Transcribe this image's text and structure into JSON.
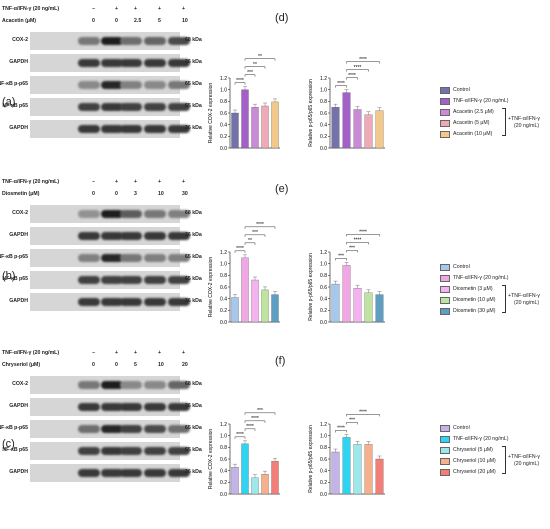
{
  "panel_labels": [
    "(a)",
    "(b)",
    "(c)",
    "(d)",
    "(e)",
    "(f)"
  ],
  "western_blots": [
    {
      "panel": "(a)",
      "treatment_label": "TNF-α/IFN-γ (20 ng/mL)",
      "treatment_signs": [
        "−",
        "+",
        "+",
        "+",
        "+"
      ],
      "compound_label": "Acacetin (μM)",
      "doses": [
        "0",
        "0",
        "2.5",
        "5",
        "10"
      ],
      "bands": [
        {
          "protein": "COX-2",
          "kda": "68 kDa"
        },
        {
          "protein": "GAPDH",
          "kda": "36 kDa"
        },
        {
          "protein": "NF-κB p-p65",
          "kda": "65 kDa"
        },
        {
          "protein": "NF-κB p65",
          "kda": "65 kDa"
        },
        {
          "protein": "GAPDH",
          "kda": "36 kDa"
        }
      ]
    },
    {
      "panel": "(b)",
      "treatment_label": "TNF-α/IFN-γ (20 ng/mL)",
      "treatment_signs": [
        "−",
        "+",
        "+",
        "+",
        "+"
      ],
      "compound_label": "Diosmetin (μM)",
      "doses": [
        "0",
        "0",
        "3",
        "10",
        "30"
      ],
      "bands": [
        {
          "protein": "COX-2",
          "kda": "68 kDa"
        },
        {
          "protein": "GAPDH",
          "kda": "36 kDa"
        },
        {
          "protein": "NF-κB p-p65",
          "kda": "65 kDa"
        },
        {
          "protein": "NF-κB p65",
          "kda": "65 kDa"
        },
        {
          "protein": "GAPDH",
          "kda": "36 kDa"
        }
      ]
    },
    {
      "panel": "(c)",
      "treatment_label": "TNF-α/IFN-γ (20 ng/mL)",
      "treatment_signs": [
        "−",
        "+",
        "+",
        "+",
        "+"
      ],
      "compound_label": "Chryseriol (μM)",
      "doses": [
        "0",
        "0",
        "5",
        "10",
        "20"
      ],
      "bands": [
        {
          "protein": "COX-2",
          "kda": "68 kDa"
        },
        {
          "protein": "GAPDH",
          "kda": "36 kDa"
        },
        {
          "protein": "NF-κB p-p65",
          "kda": "65 kDa"
        },
        {
          "protein": "NF-κB p65",
          "kda": "65 kDa"
        },
        {
          "protein": "GAPDH",
          "kda": "36 kDa"
        }
      ]
    }
  ],
  "bracket_note": [
    "+TNF-α/IFN-γ",
    "(20 ng/mL)"
  ],
  "chart_data": [
    {
      "type": "bar",
      "panel": "(d)",
      "ylabel": "Relative COX-2 expression",
      "ylim": [
        0,
        1.2
      ],
      "yticks": [
        "0.0",
        "0.2",
        "0.4",
        "0.6",
        "0.8",
        "1.0",
        "1.2"
      ],
      "values": [
        0.6,
        1.0,
        0.7,
        0.72,
        0.79
      ],
      "sig": [
        [
          "****",
          0,
          1
        ],
        [
          "***",
          1,
          2
        ],
        [
          "**",
          1,
          3
        ],
        [
          "**",
          1,
          4
        ]
      ]
    },
    {
      "type": "bar",
      "panel": "(d)",
      "ylabel": "Relative p-p65/p65 expression",
      "ylim": [
        0,
        1.2
      ],
      "yticks": [
        "0.0",
        "0.2",
        "0.4",
        "0.6",
        "0.8",
        "1.0",
        "1.2"
      ],
      "values": [
        0.7,
        0.95,
        0.66,
        0.57,
        0.64
      ],
      "sig": [
        [
          "****",
          0,
          1
        ],
        [
          "****",
          1,
          2
        ],
        [
          "****",
          1,
          3
        ],
        [
          "****",
          1,
          4
        ]
      ]
    },
    {
      "type": "bar",
      "panel": "(e)",
      "ylabel": "Relative COX-2 expression",
      "ylim": [
        0,
        1.2
      ],
      "yticks": [
        "0.0",
        "0.2",
        "0.4",
        "0.6",
        "0.8",
        "1.0",
        "1.2"
      ],
      "values": [
        0.42,
        1.1,
        0.72,
        0.55,
        0.47
      ],
      "sig": [
        [
          "****",
          0,
          1
        ],
        [
          "**",
          1,
          2
        ],
        [
          "***",
          1,
          3
        ],
        [
          "****",
          1,
          4
        ]
      ]
    },
    {
      "type": "bar",
      "panel": "(e)",
      "ylabel": "Relative p-p65/p65 expression",
      "ylim": [
        0,
        1.2
      ],
      "yticks": [
        "0.0",
        "0.2",
        "0.4",
        "0.6",
        "0.8",
        "1.0",
        "1.2"
      ],
      "values": [
        0.65,
        0.97,
        0.58,
        0.5,
        0.47
      ],
      "sig": [
        [
          "***",
          0,
          1
        ],
        [
          "***",
          1,
          2
        ],
        [
          "****",
          1,
          3
        ],
        [
          "****",
          1,
          4
        ]
      ]
    },
    {
      "type": "bar",
      "panel": "(f)",
      "ylabel": "Relative COX-2 expression",
      "ylim": [
        0,
        1.2
      ],
      "yticks": [
        "0.0",
        "0.2",
        "0.4",
        "0.6",
        "0.8",
        "1.0",
        "1.2"
      ],
      "values": [
        0.46,
        0.86,
        0.28,
        0.34,
        0.56
      ],
      "sig": [
        [
          "****",
          0,
          1
        ],
        [
          "****",
          1,
          2
        ],
        [
          "****",
          1,
          3
        ],
        [
          "***",
          1,
          4
        ]
      ]
    },
    {
      "type": "bar",
      "panel": "(f)",
      "ylabel": "Relative p-p65/p65 expression",
      "ylim": [
        0,
        1.2
      ],
      "yticks": [
        "0.0",
        "0.2",
        "0.4",
        "0.6",
        "0.8",
        "1.0",
        "1.2"
      ],
      "values": [
        0.72,
        0.97,
        0.85,
        0.85,
        0.6
      ],
      "sig": [
        [
          "****",
          0,
          1
        ],
        [
          "***",
          1,
          2
        ],
        [
          "****",
          1,
          4
        ]
      ]
    }
  ],
  "legends": [
    {
      "entries": [
        "Control",
        "TNF-α/IFN-γ (20 ng/mL)",
        "Acacetin (2.5 μM)",
        "Acacetin (5 μM)",
        "Acacetin (10 μM)"
      ],
      "colors": [
        "#7472aa",
        "#a560c7",
        "#c98bd6",
        "#f0aab7",
        "#f3c98b"
      ]
    },
    {
      "entries": [
        "Control",
        "TNF-α/IFN-γ (20 ng/mL)",
        "Diosmetin (3 μM)",
        "Diosmetin (10 μM)",
        "Diosmetin (30 μM)"
      ],
      "colors": [
        "#a6c8ec",
        "#f0a7e3",
        "#f4b3f0",
        "#bfe3a1",
        "#5f9ec3"
      ]
    },
    {
      "entries": [
        "Control",
        "TNF-α/IFN-γ (20 ng/mL)",
        "Chryseriol (5 μM)",
        "Chryseriol (10 μM)",
        "Chryseriol (20 μM)"
      ],
      "colors": [
        "#c3b3e8",
        "#2fd4f0",
        "#9de8e9",
        "#f6b08c",
        "#f37e78"
      ]
    }
  ]
}
